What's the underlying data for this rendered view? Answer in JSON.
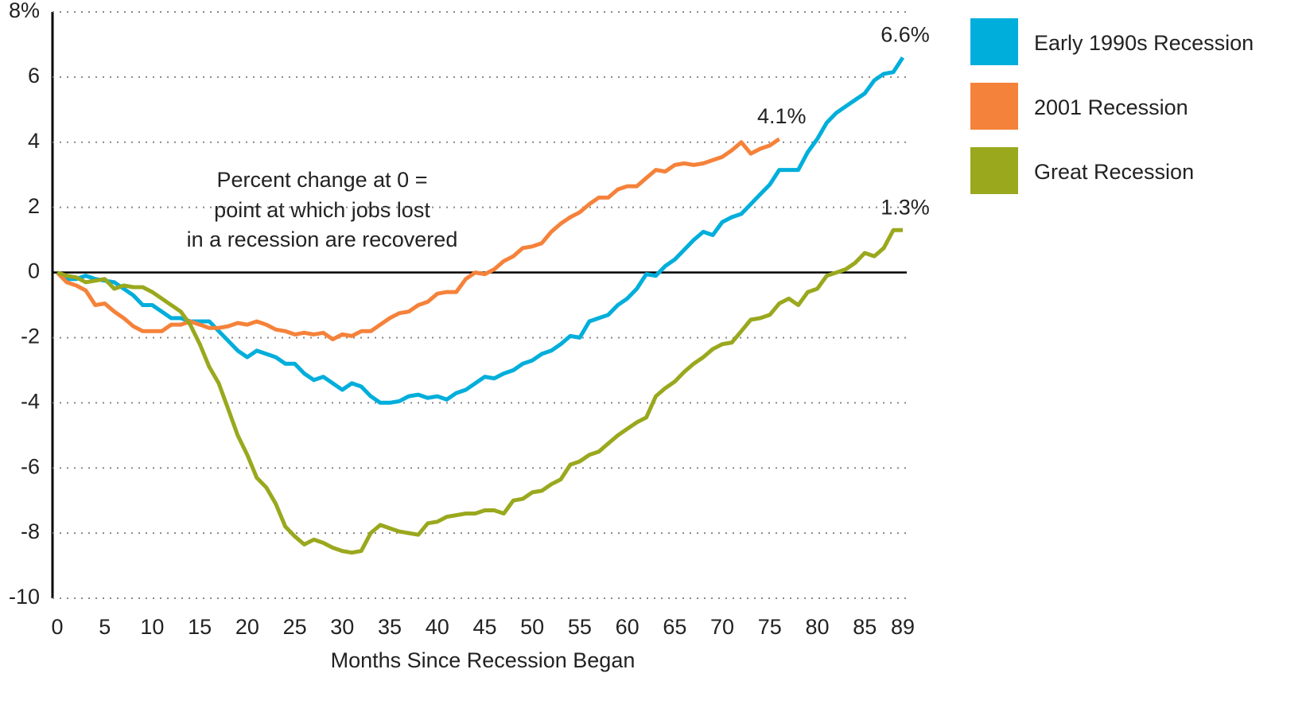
{
  "chart_data": {
    "type": "line",
    "x_label": "Months Since Recession Began",
    "annotation": [
      "Percent change at 0 =",
      "point at which jobs lost",
      "in a recession are recovered"
    ],
    "x": [
      0,
      1,
      2,
      3,
      4,
      5,
      6,
      7,
      8,
      9,
      10,
      11,
      12,
      13,
      14,
      15,
      16,
      17,
      18,
      19,
      20,
      21,
      22,
      23,
      24,
      25,
      26,
      27,
      28,
      29,
      30,
      31,
      32,
      33,
      34,
      35,
      36,
      37,
      38,
      39,
      40,
      41,
      42,
      43,
      44,
      45,
      46,
      47,
      48,
      49,
      50,
      51,
      52,
      53,
      54,
      55,
      56,
      57,
      58,
      59,
      60,
      61,
      62,
      63,
      64,
      65,
      66,
      67,
      68,
      69,
      70,
      71,
      72,
      73,
      74,
      75,
      76,
      77,
      78,
      79,
      80,
      81,
      82,
      83,
      84,
      85,
      86,
      87,
      88,
      89
    ],
    "series": [
      {
        "name": "Early 1990s Recession",
        "color": "#00aedb",
        "end_label": "6.6%",
        "values": [
          0,
          -0.2,
          -0.2,
          -0.1,
          -0.2,
          -0.25,
          -0.3,
          -0.5,
          -0.7,
          -1.0,
          -1.0,
          -1.2,
          -1.4,
          -1.4,
          -1.5,
          -1.5,
          -1.5,
          -1.8,
          -2.1,
          -2.4,
          -2.6,
          -2.4,
          -2.5,
          -2.6,
          -2.8,
          -2.8,
          -3.1,
          -3.3,
          -3.2,
          -3.4,
          -3.6,
          -3.4,
          -3.5,
          -3.8,
          -4.0,
          -4.0,
          -3.95,
          -3.8,
          -3.75,
          -3.85,
          -3.8,
          -3.9,
          -3.7,
          -3.6,
          -3.4,
          -3.2,
          -3.25,
          -3.1,
          -3.0,
          -2.8,
          -2.7,
          -2.5,
          -2.4,
          -2.2,
          -1.95,
          -2.0,
          -1.5,
          -1.4,
          -1.3,
          -1.0,
          -0.8,
          -0.5,
          -0.05,
          -0.1,
          0.2,
          0.4,
          0.7,
          1.0,
          1.25,
          1.15,
          1.55,
          1.7,
          1.8,
          2.1,
          2.4,
          2.7,
          3.15,
          3.15,
          3.15,
          3.7,
          4.1,
          4.6,
          4.9,
          5.1,
          5.3,
          5.5,
          5.9,
          6.1,
          6.15,
          6.6
        ]
      },
      {
        "name": "2001 Recession",
        "color": "#f5823a",
        "end_label": "4.1%",
        "values": [
          0,
          -0.3,
          -0.4,
          -0.55,
          -1.0,
          -0.95,
          -1.2,
          -1.4,
          -1.65,
          -1.8,
          -1.8,
          -1.8,
          -1.6,
          -1.6,
          -1.5,
          -1.6,
          -1.7,
          -1.7,
          -1.65,
          -1.55,
          -1.6,
          -1.5,
          -1.6,
          -1.75,
          -1.8,
          -1.9,
          -1.85,
          -1.9,
          -1.85,
          -2.05,
          -1.9,
          -1.95,
          -1.8,
          -1.8,
          -1.6,
          -1.4,
          -1.25,
          -1.2,
          -1.0,
          -0.9,
          -0.65,
          -0.6,
          -0.6,
          -0.2,
          0.0,
          -0.05,
          0.1,
          0.35,
          0.5,
          0.75,
          0.8,
          0.9,
          1.25,
          1.5,
          1.7,
          1.85,
          2.1,
          2.3,
          2.3,
          2.55,
          2.65,
          2.65,
          2.9,
          3.15,
          3.1,
          3.3,
          3.35,
          3.3,
          3.35,
          3.45,
          3.55,
          3.75,
          4.0,
          3.65,
          3.8,
          3.9,
          4.1,
          null,
          null,
          null,
          null,
          null,
          null,
          null,
          null,
          null,
          null,
          null,
          null,
          null
        ]
      },
      {
        "name": "Great Recession",
        "color": "#9aa81e",
        "end_label": "1.3%",
        "values": [
          0,
          -0.1,
          -0.15,
          -0.3,
          -0.25,
          -0.2,
          -0.5,
          -0.4,
          -0.45,
          -0.45,
          -0.6,
          -0.8,
          -1.0,
          -1.2,
          -1.6,
          -2.2,
          -2.9,
          -3.4,
          -4.2,
          -5.0,
          -5.6,
          -6.3,
          -6.6,
          -7.1,
          -7.8,
          -8.1,
          -8.35,
          -8.2,
          -8.3,
          -8.45,
          -8.55,
          -8.6,
          -8.55,
          -8.0,
          -7.75,
          -7.85,
          -7.95,
          -8.0,
          -8.05,
          -7.7,
          -7.65,
          -7.5,
          -7.45,
          -7.4,
          -7.4,
          -7.3,
          -7.3,
          -7.4,
          -7.0,
          -6.95,
          -6.75,
          -6.7,
          -6.5,
          -6.35,
          -5.9,
          -5.8,
          -5.6,
          -5.5,
          -5.25,
          -5.0,
          -4.8,
          -4.6,
          -4.45,
          -3.8,
          -3.55,
          -3.35,
          -3.05,
          -2.8,
          -2.6,
          -2.35,
          -2.2,
          -2.15,
          -1.8,
          -1.45,
          -1.4,
          -1.3,
          -0.95,
          -0.8,
          -1.0,
          -0.6,
          -0.5,
          -0.1,
          0.0,
          0.1,
          0.3,
          0.6,
          0.5,
          0.75,
          1.3,
          1.3
        ]
      }
    ],
    "xlim": [
      0,
      89
    ],
    "xticks": [
      0,
      5,
      10,
      15,
      20,
      25,
      30,
      35,
      40,
      45,
      50,
      55,
      60,
      65,
      70,
      75,
      80,
      85,
      89
    ],
    "ylim": [
      -10,
      8
    ],
    "yticks": [
      -10,
      -8,
      -6,
      -4,
      -2,
      0,
      2,
      4,
      6,
      {
        "value": 8,
        "label": "8%"
      }
    ],
    "grid": true,
    "legend": "right"
  }
}
